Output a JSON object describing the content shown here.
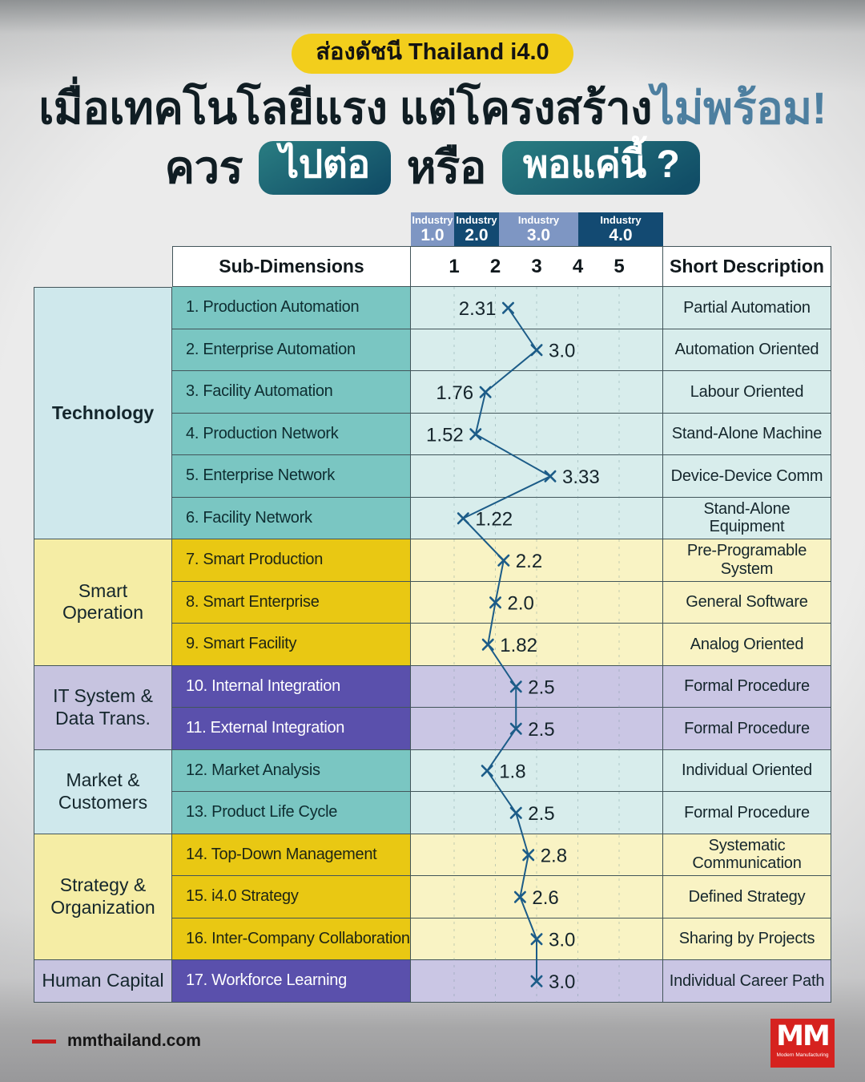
{
  "header": {
    "badge": "ส่องดัชนี Thailand i4.0",
    "title_line1_black": "เมื่อเทคโนโลยีแรง แต่โครงสร้าง",
    "title_line1_highlight": "ไม่พร้อม!",
    "title_line2_word1": "ควร",
    "title_line2_badge1": "ไปต่อ",
    "title_line2_word2": "หรือ",
    "title_line2_badge2": "พอแค่นี้ ?"
  },
  "table": {
    "industry_bands": [
      {
        "label": "Industry",
        "value": "1.0"
      },
      {
        "label": "Industry",
        "value": "2.0"
      },
      {
        "label": "Industry",
        "value": "3.0"
      },
      {
        "label": "Industry",
        "value": "4.0"
      }
    ],
    "columns": {
      "sub_dimensions": "Sub-Dimensions",
      "short_description": "Short Description"
    },
    "scale_ticks": [
      "1",
      "2",
      "3",
      "4",
      "5"
    ],
    "groups": [
      {
        "name": "Technology",
        "rows": 6,
        "theme": "teal",
        "bold": true
      },
      {
        "name": "Smart Operation",
        "rows": 3,
        "theme": "yellow",
        "bold": false
      },
      {
        "name": "IT System & Data Trans.",
        "rows": 2,
        "theme": "purple",
        "bold": false
      },
      {
        "name": "Market & Customers",
        "rows": 2,
        "theme": "teal",
        "bold": false
      },
      {
        "name": "Strategy & Organization",
        "rows": 3,
        "theme": "yellow",
        "bold": false
      },
      {
        "name": "Human Capital",
        "rows": 1,
        "theme": "purple",
        "bold": false
      }
    ],
    "rows": [
      {
        "label": "1. Production Automation",
        "desc": "Partial Automation"
      },
      {
        "label": "2. Enterprise Automation",
        "desc": "Automation Oriented"
      },
      {
        "label": "3. Facility Automation",
        "desc": "Labour Oriented"
      },
      {
        "label": "4. Production Network",
        "desc": "Stand-Alone Machine"
      },
      {
        "label": "5. Enterprise Network",
        "desc": "Device-Device Comm"
      },
      {
        "label": "6. Facility Network",
        "desc": "Stand-Alone Equipment"
      },
      {
        "label": "7. Smart Production",
        "desc": "Pre-Programable System"
      },
      {
        "label": "8. Smart Enterprise",
        "desc": "General Software"
      },
      {
        "label": "9. Smart Facility",
        "desc": "Analog Oriented"
      },
      {
        "label": "10. Internal Integration",
        "desc": "Formal Procedure"
      },
      {
        "label": "11. External Integration",
        "desc": "Formal Procedure"
      },
      {
        "label": "12. Market Analysis",
        "desc": "Individual Oriented"
      },
      {
        "label": "13. Product Life Cycle",
        "desc": "Formal Procedure"
      },
      {
        "label": "14. Top-Down Management",
        "desc": "Systematic Communication"
      },
      {
        "label": "15. i4.0 Strategy",
        "desc": "Defined Strategy"
      },
      {
        "label": "16. Inter-Company Collaboration",
        "desc": "Sharing by Projects"
      },
      {
        "label": "17. Workforce Learning",
        "desc": "Individual Career Path"
      }
    ]
  },
  "chart_data": {
    "type": "line",
    "orientation": "vertical-categories",
    "title": "Thailand i4.0 sub-dimension scores",
    "x_ticks": [
      1,
      2,
      3,
      4,
      5
    ],
    "xlim": [
      1,
      5
    ],
    "grid": "dashed-vertical",
    "categories": [
      "Production Automation",
      "Enterprise Automation",
      "Facility Automation",
      "Production Network",
      "Enterprise Network",
      "Facility Network",
      "Smart Production",
      "Smart Enterprise",
      "Smart Facility",
      "Internal Integration",
      "External Integration",
      "Market Analysis",
      "Product Life Cycle",
      "Top-Down Management",
      "i4.0 Strategy",
      "Inter-Company Collaboration",
      "Workforce Learning"
    ],
    "values": [
      2.31,
      3.0,
      1.76,
      1.52,
      3.33,
      1.22,
      2.2,
      2.0,
      1.82,
      2.5,
      2.5,
      1.8,
      2.5,
      2.8,
      2.6,
      3.0,
      3.0
    ],
    "value_labels": [
      "2.31",
      "3.0",
      "1.76",
      "1.52",
      "3.33",
      "1.22",
      "2.2",
      "2.0",
      "1.82",
      "2.5",
      "2.5",
      "1.8",
      "2.5",
      "2.8",
      "2.6",
      "3.0",
      "3.0"
    ],
    "label_side": [
      "left",
      "right",
      "left",
      "left",
      "right",
      "right",
      "right",
      "right",
      "right",
      "right",
      "right",
      "right",
      "right",
      "right",
      "right",
      "right",
      "right"
    ],
    "marker": "x"
  },
  "footer": {
    "site": "mmthailand.com",
    "logo_text": "MM",
    "logo_subtext": "Modern Manufacturing"
  },
  "colors": {
    "accent_yellow": "#f2ce1c",
    "highlight_blue": "#4d7fa0",
    "pill_teal": "#1c6b77",
    "industry_light": "#7e96c3",
    "industry_dark": "#134a72",
    "teal_label": "#7ac6c2",
    "teal_bg": "#d8edec",
    "yellow_label": "#e9c813",
    "yellow_bg": "#f9f3c4",
    "purple_label": "#5a50ac",
    "purple_bg": "#cac6e4",
    "line": "#1c5c88",
    "value_text": "#15242b",
    "logo_red": "#d6221f"
  }
}
